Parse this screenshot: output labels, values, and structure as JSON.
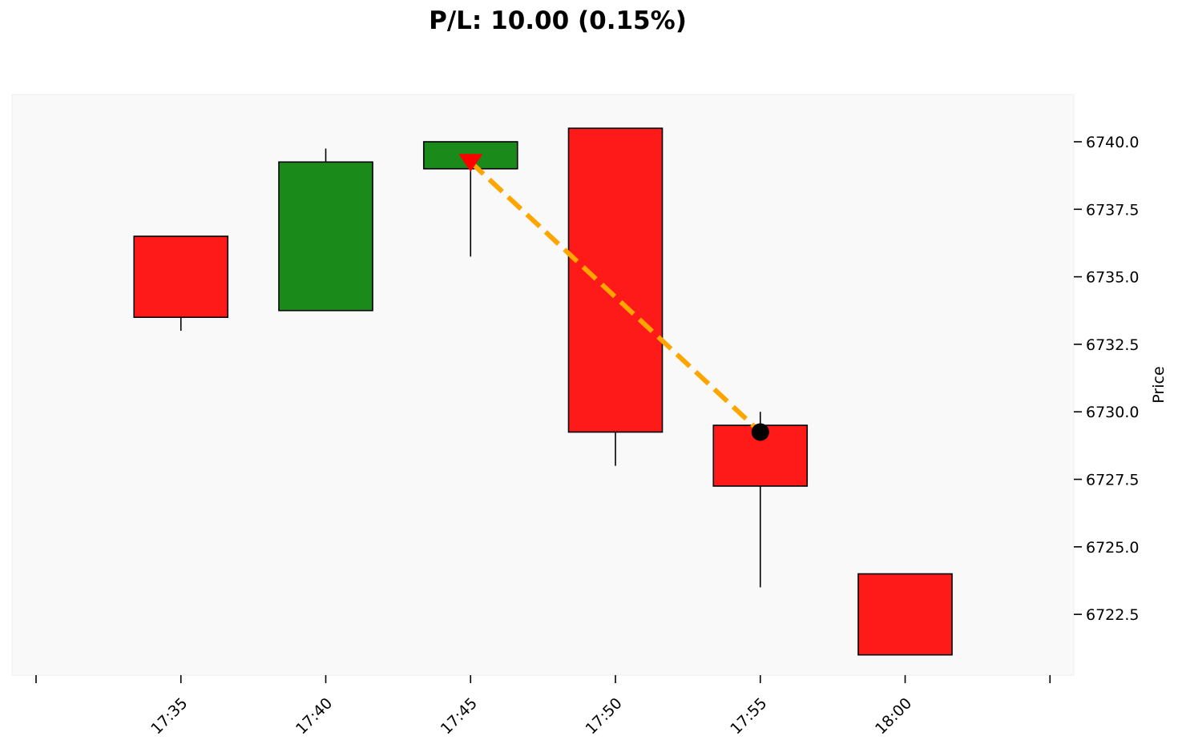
{
  "chart_data": {
    "type": "candlestick",
    "title": "P/L: 10.00 (0.15%)",
    "xlabel": "",
    "ylabel": "Price",
    "y_axis_side": "right",
    "ylim": [
      6720.25,
      6741.75
    ],
    "yticks": [
      "6722.5",
      "6725.0",
      "6727.5",
      "6730.0",
      "6732.5",
      "6735.0",
      "6737.5",
      "6740.0"
    ],
    "categories": [
      "17:35",
      "17:40",
      "17:45",
      "17:50",
      "17:55",
      "18:00"
    ],
    "candles": [
      {
        "time": "17:35",
        "open": 6736.5,
        "high": 6736.5,
        "low": 6733.0,
        "close": 6733.5
      },
      {
        "time": "17:40",
        "open": 6733.75,
        "high": 6739.75,
        "low": 6733.75,
        "close": 6739.25
      },
      {
        "time": "17:45",
        "open": 6739.0,
        "high": 6740.0,
        "low": 6735.75,
        "close": 6740.0
      },
      {
        "time": "17:50",
        "open": 6740.5,
        "high": 6740.5,
        "low": 6728.0,
        "close": 6729.25
      },
      {
        "time": "17:55",
        "open": 6729.5,
        "high": 6730.0,
        "low": 6723.5,
        "close": 6727.25
      },
      {
        "time": "18:00",
        "open": 6724.0,
        "high": 6724.0,
        "low": 6721.0,
        "close": 6721.0
      }
    ],
    "trade": {
      "entry": {
        "time": "17:45",
        "price": 6739.25,
        "marker": "down-triangle"
      },
      "exit": {
        "time": "17:55",
        "price": 6729.25,
        "marker": "circle"
      }
    },
    "grid": false,
    "colors": {
      "up": "#1a8a1a",
      "down": "#ff1a1a",
      "background": "#f9f9f9",
      "trade_line": "#ffa500",
      "entry_marker": "#ff0000",
      "exit_marker": "#000000"
    }
  }
}
